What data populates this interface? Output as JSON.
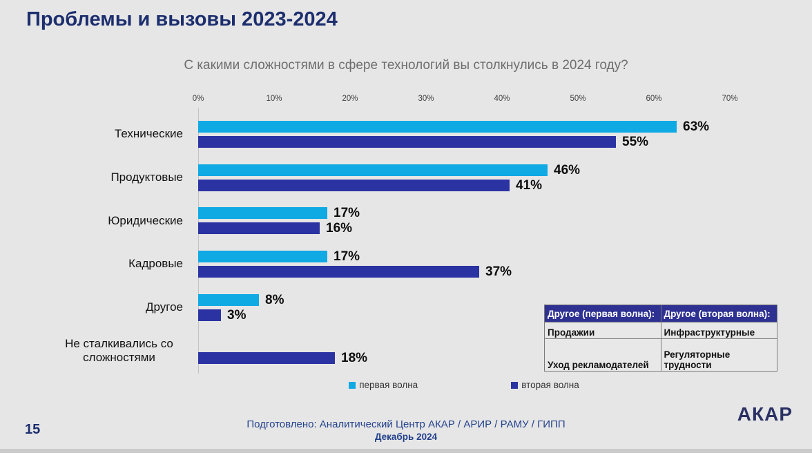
{
  "slide": {
    "title": "Проблемы и вызовы 2023-2024",
    "page_number": "15",
    "footer_line1": "Подготовлено: Аналитический Центр АКАР / АРИР / РАМУ / ГИПП",
    "footer_line2": "Декабрь 2024",
    "logo_text": "АКАР",
    "background_color": "#e6e6e6",
    "accent_navy": "#1c2e6e"
  },
  "chart_data": {
    "type": "bar",
    "orientation": "horizontal",
    "title": "С какими сложностями в сфере технологий вы столкнулись в 2024 году?",
    "categories": [
      "Технические",
      "Продуктовые",
      "Юридические",
      "Кадровые",
      "Другое",
      "Не сталкивались со сложностями"
    ],
    "series": [
      {
        "name": "первая волна",
        "color": "#0fa9e4",
        "values": [
          63,
          46,
          17,
          17,
          8,
          null
        ]
      },
      {
        "name": "вторая волна",
        "color": "#2b33a3",
        "values": [
          55,
          41,
          16,
          37,
          3,
          18
        ]
      }
    ],
    "x_ticks": [
      "0%",
      "10%",
      "20%",
      "30%",
      "40%",
      "50%",
      "60%",
      "70%"
    ],
    "xlim": [
      0,
      70
    ],
    "value_suffix": "%",
    "grid": false,
    "legend_position": "bottom"
  },
  "other_table": {
    "headers": [
      "Другое (первая волна):",
      "Другое (вторая волна):"
    ],
    "rows": [
      [
        "Продажии",
        "Инфраструктурные"
      ],
      [
        "Уход рекламодателей",
        "Регуляторные трудности"
      ]
    ],
    "header_bg": "#2e3192"
  }
}
